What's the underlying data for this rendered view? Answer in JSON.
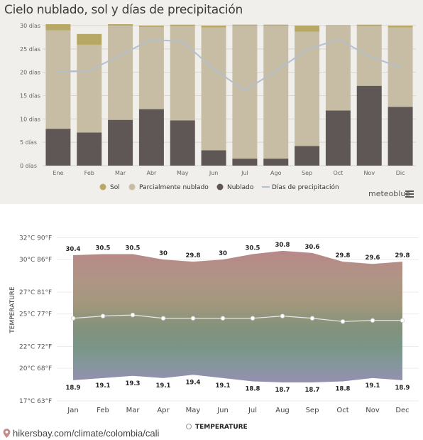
{
  "top": {
    "title": "Cielo nublado, sol y días de precipitación",
    "brand": "meteoblue"
  },
  "bottom": {
    "source": "hikersbay.com/climate/colombia/cali"
  },
  "colors": {
    "sol": "#b8a865",
    "parcial": "#c7bda5",
    "nublado": "#5f5755",
    "precip": "#b5bfcc",
    "panel": "#f1efec"
  },
  "chart_data": [
    {
      "type": "bar",
      "stacked": true,
      "title": "Cielo nublado, sol y días de precipitación",
      "categories": [
        "Ene",
        "Feb",
        "Mar",
        "Abr",
        "May",
        "Jun",
        "Jul",
        "Ago",
        "Sep",
        "Oct",
        "Nov",
        "Dic"
      ],
      "ylim": [
        0,
        30
      ],
      "yticks": [
        0,
        5,
        10,
        15,
        20,
        25,
        30
      ],
      "ytick_labels": [
        "0 días",
        "5 días",
        "10 días",
        "15 días",
        "20 días",
        "25 días",
        "30 días"
      ],
      "grid": true,
      "legend_position": "bottom",
      "series": [
        {
          "name": "Nublado",
          "type": "bar",
          "color": "#5f5755",
          "values": [
            7.9,
            7.1,
            9.8,
            12.1,
            9.7,
            3.3,
            1.5,
            1.5,
            4.2,
            11.8,
            17.1,
            12.6
          ]
        },
        {
          "name": "Parcialmente nublado",
          "type": "bar",
          "color": "#c7bda5",
          "values": [
            21.1,
            18.8,
            20.2,
            17.6,
            20.2,
            26.3,
            28.5,
            28.5,
            24.5,
            18.2,
            12.8,
            17.0
          ]
        },
        {
          "name": "Sol",
          "type": "bar",
          "color": "#b8a865",
          "values": [
            1.3,
            2.3,
            0.3,
            0.3,
            0.3,
            0.4,
            0.2,
            0.2,
            1.3,
            0.1,
            0.3,
            0.4
          ]
        },
        {
          "name": "Días de precipitación",
          "type": "line",
          "color": "#b5bfcc",
          "values": [
            20.2,
            20.3,
            23.7,
            27.0,
            26.6,
            20.7,
            16.1,
            20.3,
            24.8,
            27.1,
            23.5,
            21.0
          ]
        }
      ]
    },
    {
      "type": "area",
      "categories": [
        "Jan",
        "Feb",
        "Mar",
        "Apr",
        "May",
        "Jun",
        "Jul",
        "Aug",
        "Sep",
        "Oct",
        "Nov",
        "Dec"
      ],
      "ylabel": "TEMPERATURE",
      "ylim": [
        17,
        32
      ],
      "yticks": [
        17,
        20,
        22,
        25,
        27,
        30,
        32
      ],
      "ytick_labels": [
        "17°C 63°F",
        "20°C 68°F",
        "22°C 72°F",
        "25°C 77°F",
        "27°C 81°F",
        "30°C 86°F",
        "32°C 90°F"
      ],
      "legend_position": "bottom",
      "series": [
        {
          "name": "high",
          "values": [
            30.4,
            30.5,
            30.5,
            30,
            29.8,
            30,
            30.5,
            30.8,
            30.6,
            29.8,
            29.6,
            29.8
          ]
        },
        {
          "name": "low",
          "values": [
            18.9,
            19.1,
            19.3,
            19.1,
            19.4,
            19.1,
            18.8,
            18.7,
            18.7,
            18.8,
            19.1,
            18.9
          ]
        },
        {
          "name": "TEMPERATURE",
          "values": [
            24.6,
            24.8,
            24.9,
            24.6,
            24.6,
            24.6,
            24.6,
            24.8,
            24.6,
            24.3,
            24.4,
            24.4
          ]
        }
      ]
    }
  ]
}
